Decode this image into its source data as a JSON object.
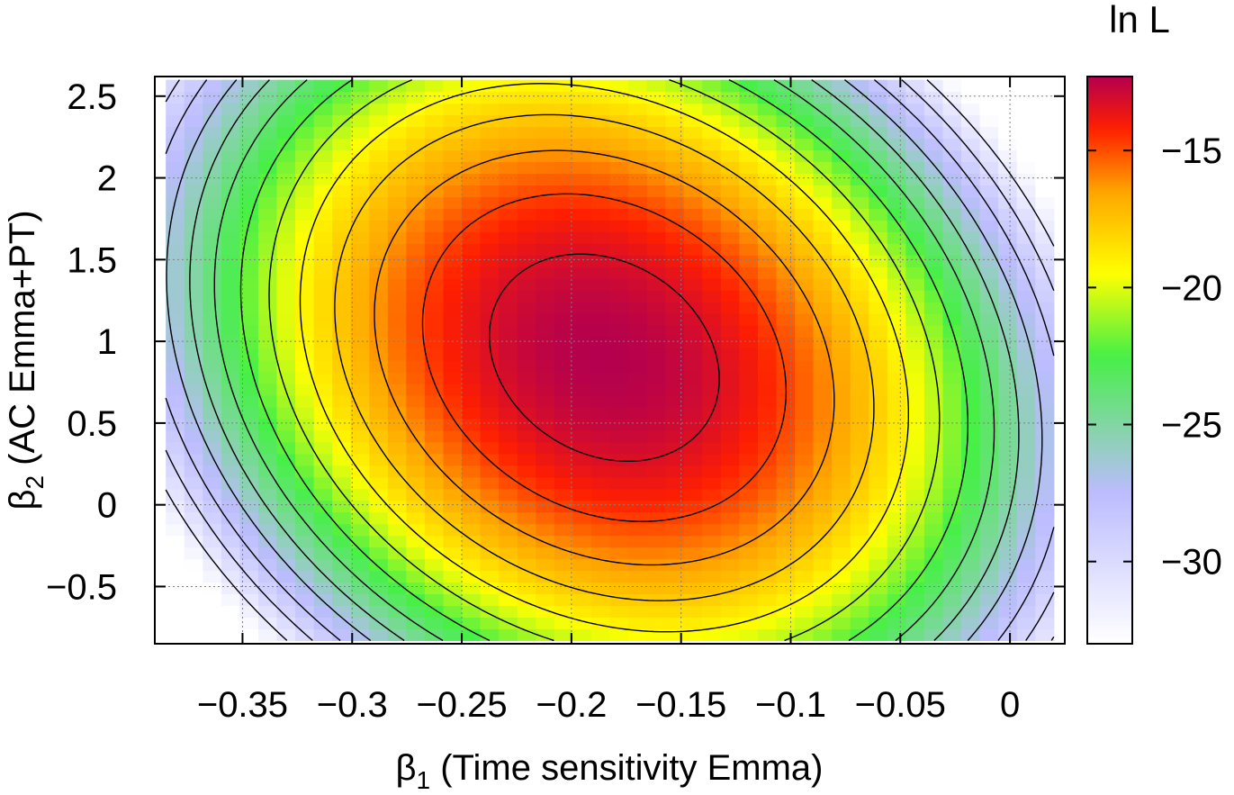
{
  "chart_data": {
    "type": "heatmap",
    "xlabel_symbol": "β",
    "xlabel_sub": "1",
    "xlabel_rest": " (Time sensitivity Emma)",
    "ylabel_symbol": "β",
    "ylabel_sub": "2",
    "ylabel_rest": " (AC Emma+PT)",
    "colorbar_title": "ln L",
    "xlim": [
      -0.39,
      0.025
    ],
    "ylim": [
      -0.85,
      2.62
    ],
    "x_ticks": [
      -0.35,
      -0.3,
      -0.25,
      -0.2,
      -0.15,
      -0.1,
      -0.05,
      0
    ],
    "x_tick_labels": [
      "−0.35",
      "−0.3",
      "−0.25",
      "−0.2",
      "−0.15",
      "−0.1",
      "−0.05",
      "0"
    ],
    "y_ticks": [
      -0.5,
      0,
      0.5,
      1,
      1.5,
      2,
      2.5
    ],
    "y_tick_labels": [
      "−0.5",
      "0",
      "0.5",
      "1",
      "1.5",
      "2",
      "2.5"
    ],
    "colorbar_range": [
      -33,
      -12.3
    ],
    "colorbar_ticks": [
      -30,
      -25,
      -20,
      -15
    ],
    "colorbar_tick_labels": [
      "−30",
      "−25",
      "−20",
      "−15"
    ],
    "grid": true,
    "surface": {
      "description_free_params": true,
      "maximum": {
        "x": -0.185,
        "y": 0.9,
        "z": -12.3
      },
      "curvature": {
        "a": 380,
        "b": 2.6,
        "c": 13.0
      },
      "grid_x": [
        -0.385,
        0.02
      ],
      "grid_y": [
        -0.83,
        2.6
      ],
      "nx": 48,
      "ny": 48
    },
    "contour_levels": [
      -13.3,
      -14.8,
      -16.3,
      -17.8,
      -19.3,
      -20.8,
      -22.3,
      -23.8,
      -25.3,
      -26.8,
      -28.3,
      -29.8,
      -31.3
    ],
    "colors": {
      "palette": [
        "#ffffff",
        "#bcbcff",
        "#46f046",
        "#ffff00",
        "#ffa500",
        "#ff1e00",
        "#b4004e"
      ],
      "palette_stops": [
        -33,
        -27.5,
        -22.5,
        -19.5,
        -16.5,
        -14.2,
        -12.3
      ],
      "contour": "#000000",
      "grid": "#808080"
    }
  }
}
